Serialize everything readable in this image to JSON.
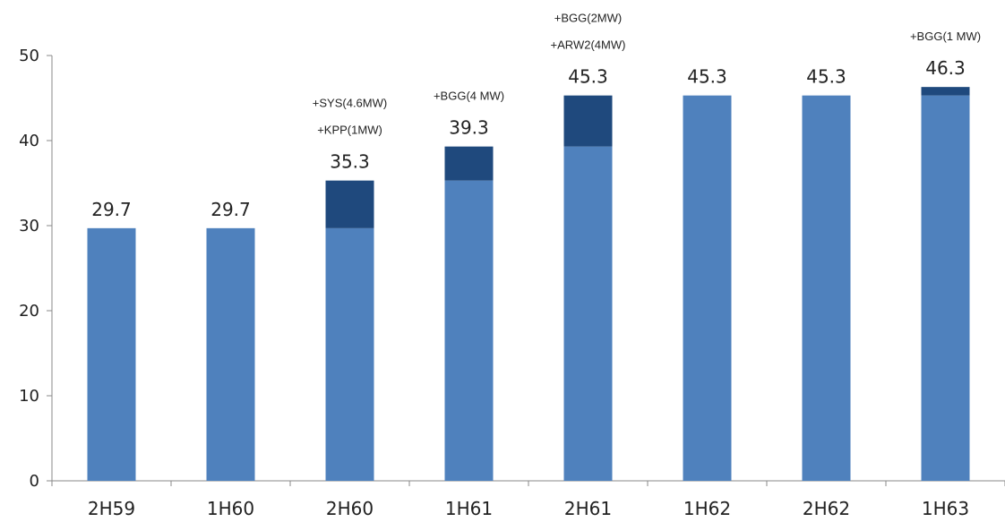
{
  "chart_data": {
    "type": "bar",
    "stacked": true,
    "title": "",
    "xlabel": "",
    "ylabel": "",
    "categories": [
      "2H59",
      "1H60",
      "2H60",
      "1H61",
      "2H61",
      "1H62",
      "2H62",
      "1H63"
    ],
    "series": [
      {
        "values": [
          29.7,
          29.7,
          29.7,
          35.3,
          39.3,
          45.3,
          45.3,
          45.3
        ]
      },
      {
        "values": [
          0,
          0,
          5.6,
          4.0,
          6.0,
          0,
          0,
          1.0
        ]
      }
    ],
    "totals": [
      "29.7",
      "29.7",
      "35.3",
      "39.3",
      "45.3",
      "45.3",
      "45.3",
      "46.3"
    ],
    "annotations": [
      {
        "category": "2H60",
        "lines": [
          "+SYS(4.6MW)",
          "+KPP(1MW)"
        ]
      },
      {
        "category": "1H61",
        "lines": [
          "+BGG(4 MW)"
        ]
      },
      {
        "category": "2H61",
        "lines": [
          "+BGG(2MW)",
          "+ARW2(4MW)"
        ]
      },
      {
        "category": "1H63",
        "lines": [
          "+BGG(1 MW)"
        ]
      }
    ],
    "ylim": [
      0,
      50
    ],
    "yticks": [
      0,
      10,
      20,
      30,
      40,
      50
    ],
    "grid": false,
    "legend": "none",
    "colors": {
      "base": "#4f81bd",
      "addition": "#1f497d"
    }
  }
}
